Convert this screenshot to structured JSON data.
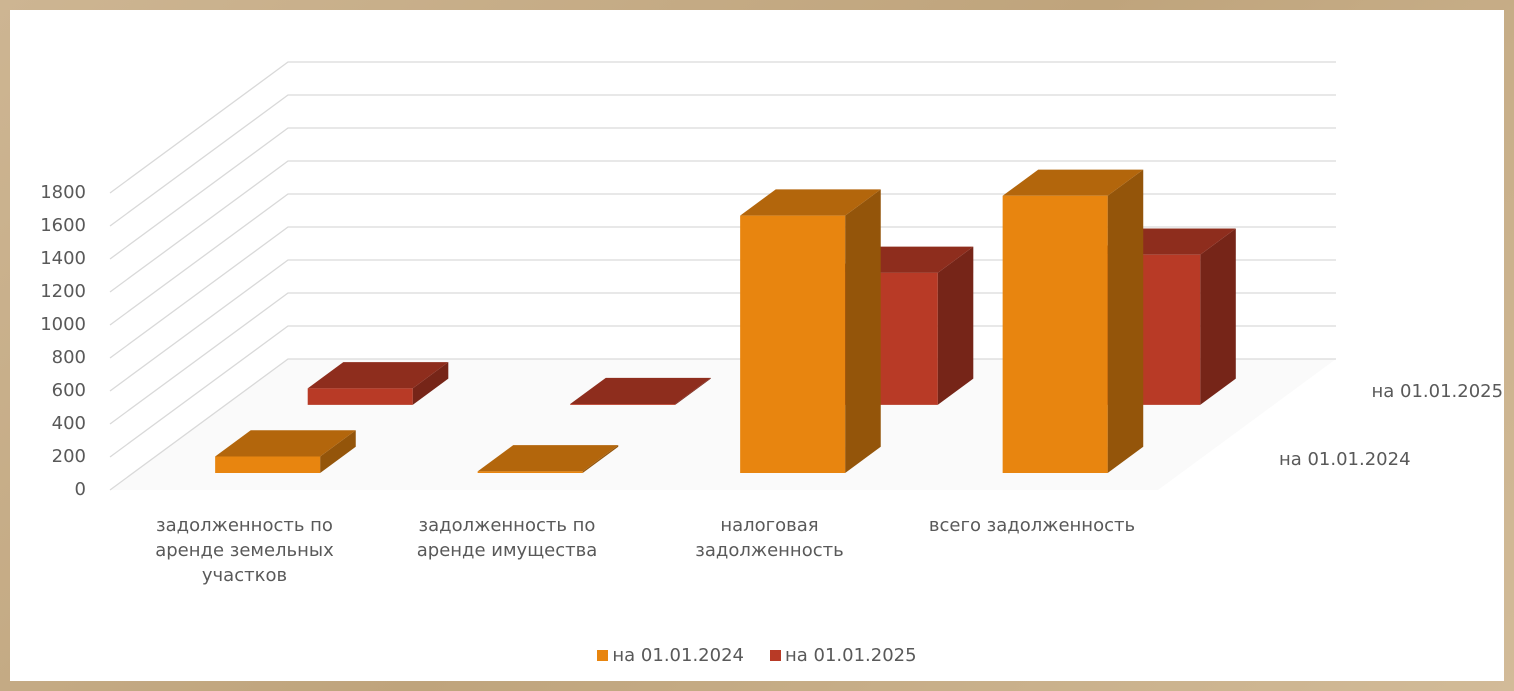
{
  "chart_data": {
    "type": "bar3d",
    "categories": [
      "задолженность по аренде земельных участков",
      "задолженность по аренде имущества",
      "налоговая задолженность",
      "всего задолженность"
    ],
    "series": [
      {
        "name": "на 01.01.2024",
        "color": "#e8850f",
        "values": [
          100,
          10,
          1560,
          1680
        ]
      },
      {
        "name": "на 01.01.2025",
        "color": "#b83a26",
        "values": [
          100,
          5,
          800,
          910
        ]
      }
    ],
    "ylim": [
      0,
      1800
    ],
    "yticks": [
      0,
      200,
      400,
      600,
      800,
      1000,
      1200,
      1400,
      1600,
      1800
    ],
    "grid": true
  }
}
